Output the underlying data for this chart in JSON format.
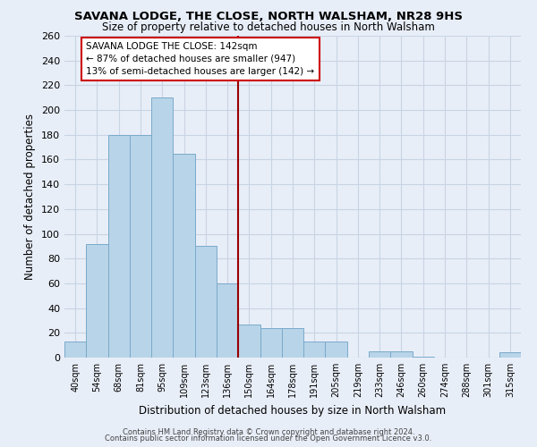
{
  "title": "SAVANA LODGE, THE CLOSE, NORTH WALSHAM, NR28 9HS",
  "subtitle": "Size of property relative to detached houses in North Walsham",
  "xlabel": "Distribution of detached houses by size in North Walsham",
  "ylabel": "Number of detached properties",
  "categories": [
    "40sqm",
    "54sqm",
    "68sqm",
    "81sqm",
    "95sqm",
    "109sqm",
    "123sqm",
    "136sqm",
    "150sqm",
    "164sqm",
    "178sqm",
    "191sqm",
    "205sqm",
    "219sqm",
    "233sqm",
    "246sqm",
    "260sqm",
    "274sqm",
    "288sqm",
    "301sqm",
    "315sqm"
  ],
  "values": [
    13,
    92,
    180,
    180,
    210,
    165,
    90,
    60,
    27,
    24,
    24,
    13,
    13,
    0,
    5,
    5,
    1,
    0,
    0,
    0,
    4
  ],
  "bar_color": "#b8d4e8",
  "bar_edge_color": "#7aaacb",
  "vline_x": 7.5,
  "vline_color": "#990000",
  "annotation_line1": "SAVANA LODGE THE CLOSE: 142sqm",
  "annotation_line2": "← 87% of detached houses are smaller (947)",
  "annotation_line3": "13% of semi-detached houses are larger (142) →",
  "annotation_box_color": "white",
  "annotation_box_edge": "#cc0000",
  "ylim": [
    0,
    260
  ],
  "yticks": [
    0,
    20,
    40,
    60,
    80,
    100,
    120,
    140,
    160,
    180,
    200,
    220,
    240,
    260
  ],
  "footer1": "Contains HM Land Registry data © Crown copyright and database right 2024.",
  "footer2": "Contains public sector information licensed under the Open Government Licence v3.0.",
  "bg_color": "#e8eef8",
  "grid_color": "#c8d4e4"
}
